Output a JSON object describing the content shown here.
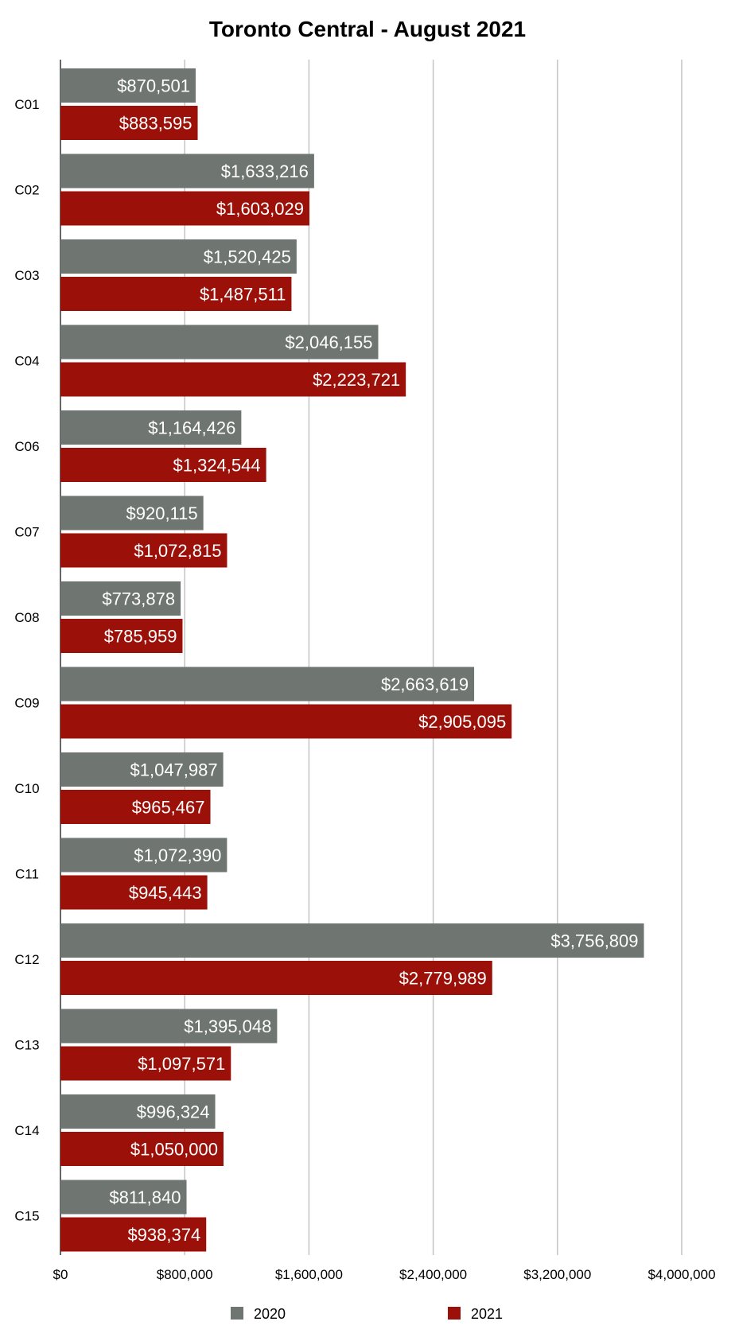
{
  "chart_data": {
    "type": "bar",
    "orientation": "horizontal",
    "title": "Toronto Central - August 2021",
    "xlabel": "",
    "ylabel": "",
    "xlim": [
      0,
      4000000
    ],
    "x_ticks": [
      0,
      800000,
      1600000,
      2400000,
      3200000,
      4000000
    ],
    "x_tick_labels": [
      "$0",
      "$800,000",
      "$1,600,000",
      "$2,400,000",
      "$3,200,000",
      "$4,000,000"
    ],
    "grid": true,
    "legend_position": "bottom",
    "categories": [
      "C01",
      "C02",
      "C03",
      "C04",
      "C06",
      "C07",
      "C08",
      "C09",
      "C10",
      "C11",
      "C12",
      "C13",
      "C14",
      "C15"
    ],
    "series": [
      {
        "name": "2020",
        "color": "#6f7571",
        "values": [
          870501,
          1633216,
          1520425,
          2046155,
          1164426,
          920115,
          773878,
          2663619,
          1047987,
          1072390,
          3756809,
          1395048,
          996324,
          811840
        ],
        "labels": [
          "$870,501",
          "$1,633,216",
          "$1,520,425",
          "$2,046,155",
          "$1,164,426",
          "$920,115",
          "$773,878",
          "$2,663,619",
          "$1,047,987",
          "$1,072,390",
          "$3,756,809",
          "$1,395,048",
          "$996,324",
          "$811,840"
        ]
      },
      {
        "name": "2021",
        "color": "#9b1109",
        "values": [
          883595,
          1603029,
          1487511,
          2223721,
          1324544,
          1072815,
          785959,
          2905095,
          965467,
          945443,
          2779989,
          1097571,
          1050000,
          938374
        ],
        "labels": [
          "$883,595",
          "$1,603,029",
          "$1,487,511",
          "$2,223,721",
          "$1,324,544",
          "$1,072,815",
          "$785,959",
          "$2,905,095",
          "$965,467",
          "$945,443",
          "$2,779,989",
          "$1,097,571",
          "$1,050,000",
          "$938,374"
        ]
      }
    ]
  }
}
